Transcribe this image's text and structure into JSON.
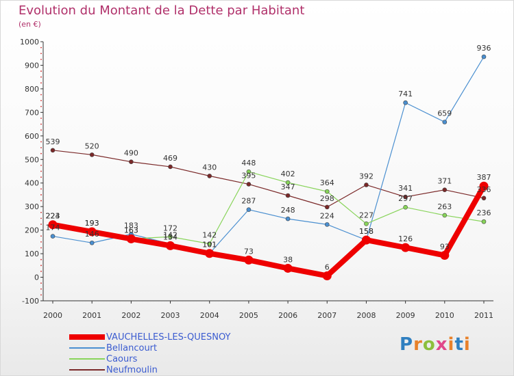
{
  "header": {
    "title": "Evolution du Montant de la Dette par Habitant",
    "unit": "(en €)"
  },
  "logo": {
    "text": "Proxiti"
  },
  "chart_data": {
    "type": "line",
    "title": "Evolution du Montant de la Dette par Habitant",
    "ylabel": "(en €)",
    "xlabel": "",
    "ylim": [
      -100,
      1000
    ],
    "yticks": [
      -100,
      0,
      100,
      200,
      300,
      400,
      500,
      600,
      700,
      800,
      900,
      1000
    ],
    "categories": [
      "2000",
      "2001",
      "2002",
      "2003",
      "2004",
      "2005",
      "2006",
      "2007",
      "2008",
      "2009",
      "2010",
      "2011"
    ],
    "grid": false,
    "legend": "bottom-left",
    "series": [
      {
        "name": "VAUCHELLES-LES-QUESNOY",
        "color": "#ee0000",
        "values": [
          223,
          193,
          163,
          134,
          101,
          73,
          38,
          6,
          158,
          126,
          93,
          387
        ]
      },
      {
        "name": "Bellancourt",
        "color": "#4a8fd0",
        "values": [
          174,
          146,
          183,
          142,
          101,
          287,
          248,
          224,
          158,
          741,
          659,
          936
        ]
      },
      {
        "name": "Caours",
        "color": "#88d45a",
        "values": [
          224,
          193,
          163,
          172,
          142,
          448,
          402,
          364,
          227,
          297,
          263,
          236
        ]
      },
      {
        "name": "Neufmoulin",
        "color": "#7a2828",
        "values": [
          539,
          520,
          490,
          469,
          430,
          395,
          347,
          298,
          392,
          341,
          371,
          336
        ]
      }
    ]
  }
}
